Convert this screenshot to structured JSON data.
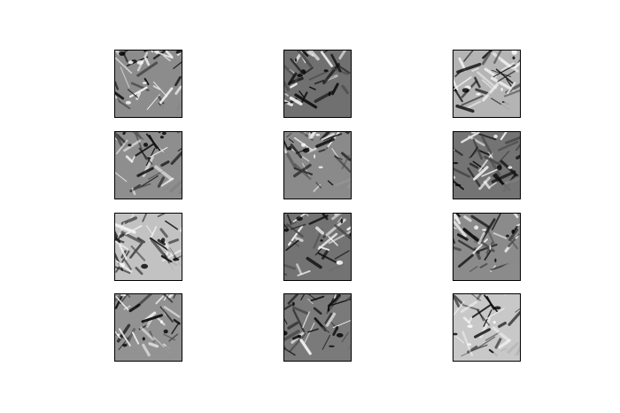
{
  "figure": {
    "grid": {
      "rows": 4,
      "cols": 3
    },
    "colormap": "gray",
    "background": "#ffffff",
    "panel_border_color": "#000000",
    "panels": [
      {
        "row": 1,
        "col": 1,
        "tone": "mid-gray",
        "fill": "#8c8c8c"
      },
      {
        "row": 1,
        "col": 2,
        "tone": "dark-gray",
        "fill": "#707070"
      },
      {
        "row": 1,
        "col": 3,
        "tone": "light-gray",
        "fill": "#b4b4b4"
      },
      {
        "row": 2,
        "col": 1,
        "tone": "mid-gray",
        "fill": "#8e8e8e"
      },
      {
        "row": 2,
        "col": 2,
        "tone": "mid-gray",
        "fill": "#8a8a8a"
      },
      {
        "row": 2,
        "col": 3,
        "tone": "dark-gray",
        "fill": "#747474"
      },
      {
        "row": 3,
        "col": 1,
        "tone": "light-gray",
        "fill": "#c2c2c2"
      },
      {
        "row": 3,
        "col": 2,
        "tone": "dark-gray",
        "fill": "#737373"
      },
      {
        "row": 3,
        "col": 3,
        "tone": "mid-gray",
        "fill": "#8b8b8b"
      },
      {
        "row": 4,
        "col": 1,
        "tone": "mid-gray",
        "fill": "#929292"
      },
      {
        "row": 4,
        "col": 2,
        "tone": "dark-gray",
        "fill": "#7a7a7a"
      },
      {
        "row": 4,
        "col": 3,
        "tone": "light-gray",
        "fill": "#c8c8c8"
      }
    ]
  }
}
